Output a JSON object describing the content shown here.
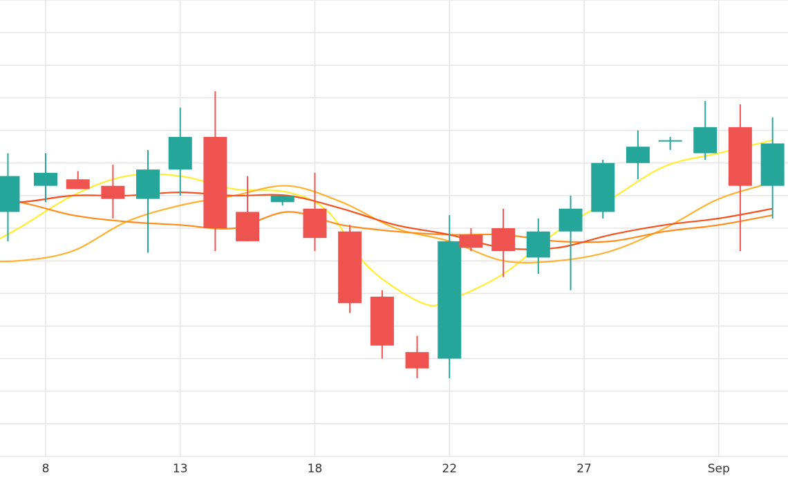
{
  "chart_data": {
    "type": "candlestick",
    "x_ticks": [
      "8",
      "13",
      "18",
      "22",
      "27",
      "Sep"
    ],
    "ylim": [
      0,
      14
    ],
    "grid": true,
    "legend": "none",
    "colors": {
      "up": "#26a69a",
      "down": "#ef5350",
      "grid": "#e6e6e6",
      "ma_fast": "#ffee33",
      "ma_medium": "#ffb02e",
      "ma_slow": "#ff8c1a",
      "ma_longest": "#f4511e"
    },
    "candles": [
      {
        "x": 6.6,
        "open": 7.5,
        "high": 9.3,
        "low": 6.6,
        "close": 8.6
      },
      {
        "x": 8.0,
        "open": 8.3,
        "high": 9.3,
        "low": 7.8,
        "close": 8.7
      },
      {
        "x": 9.2,
        "open": 8.5,
        "high": 8.75,
        "low": 8.2,
        "close": 8.2
      },
      {
        "x": 10.5,
        "open": 8.3,
        "high": 8.95,
        "low": 7.3,
        "close": 7.9
      },
      {
        "x": 11.8,
        "open": 7.9,
        "high": 9.4,
        "low": 6.25,
        "close": 8.8
      },
      {
        "x": 13.0,
        "open": 8.8,
        "high": 10.7,
        "low": 8.0,
        "close": 9.8
      },
      {
        "x": 14.3,
        "open": 9.8,
        "high": 11.2,
        "low": 6.3,
        "close": 7.0
      },
      {
        "x": 15.5,
        "open": 7.5,
        "high": 8.6,
        "low": 6.6,
        "close": 6.6
      },
      {
        "x": 16.8,
        "open": 7.8,
        "high": 8.0,
        "low": 7.7,
        "close": 8.0
      },
      {
        "x": 18.0,
        "open": 7.6,
        "high": 8.7,
        "low": 6.3,
        "close": 6.7
      },
      {
        "x": 19.3,
        "open": 6.9,
        "high": 7.1,
        "low": 4.4,
        "close": 4.7
      },
      {
        "x": 20.5,
        "open": 4.9,
        "high": 5.1,
        "low": 3.0,
        "close": 3.4
      },
      {
        "x": 21.8,
        "open": 3.2,
        "high": 3.7,
        "low": 2.4,
        "close": 2.7
      },
      {
        "x": 23.0,
        "open": 3.0,
        "high": 7.4,
        "low": 2.4,
        "close": 6.6
      },
      {
        "x": 23.8,
        "open": 6.8,
        "high": 7.0,
        "low": 6.3,
        "close": 6.4
      },
      {
        "x": 25.0,
        "open": 7.0,
        "high": 7.6,
        "low": 5.5,
        "close": 6.3
      },
      {
        "x": 26.3,
        "open": 6.1,
        "high": 7.3,
        "low": 5.6,
        "close": 6.9
      },
      {
        "x": 27.5,
        "open": 6.9,
        "high": 8.0,
        "low": 5.1,
        "close": 7.6
      },
      {
        "x": 28.7,
        "open": 7.5,
        "high": 9.1,
        "low": 7.3,
        "close": 9.0
      },
      {
        "x": 30.0,
        "open": 9.0,
        "high": 10.0,
        "low": 8.5,
        "close": 9.5
      },
      {
        "x": 31.2,
        "open": 9.7,
        "high": 9.8,
        "low": 9.4,
        "close": 9.7
      },
      {
        "x": 32.5,
        "open": 9.3,
        "high": 10.9,
        "low": 9.1,
        "close": 10.1
      },
      {
        "x": 33.8,
        "open": 10.1,
        "high": 10.8,
        "low": 6.3,
        "close": 8.3
      },
      {
        "x": 35.0,
        "open": 8.3,
        "high": 10.4,
        "low": 7.3,
        "close": 9.6
      }
    ],
    "series": [
      {
        "color_key": "ma_fast",
        "x": [
          5,
          7,
          9,
          11,
          13,
          15,
          17,
          18.5,
          20,
          22,
          23,
          25,
          27,
          29,
          31,
          33,
          35
        ],
        "y": [
          6.1,
          7.0,
          8.0,
          8.6,
          8.6,
          8.2,
          8.1,
          7.5,
          5.8,
          4.7,
          4.8,
          5.6,
          6.9,
          7.9,
          8.9,
          9.3,
          9.7
        ]
      },
      {
        "color_key": "ma_medium",
        "x": [
          5,
          7,
          9,
          11,
          13,
          15,
          17,
          19,
          21,
          23,
          25,
          27,
          29,
          31,
          33,
          35
        ],
        "y": [
          6.0,
          6.0,
          6.3,
          7.2,
          7.7,
          8.0,
          8.3,
          7.8,
          7.0,
          6.6,
          6.0,
          6.0,
          6.3,
          7.0,
          7.9,
          8.4
        ]
      },
      {
        "color_key": "ma_slow",
        "x": [
          5,
          7,
          9,
          11,
          13,
          15,
          17,
          19,
          21,
          23,
          25,
          27,
          29,
          31,
          33,
          35
        ],
        "y": [
          7.9,
          7.8,
          7.4,
          7.2,
          7.1,
          7.0,
          7.5,
          7.1,
          6.9,
          6.8,
          6.8,
          6.6,
          6.6,
          6.9,
          7.1,
          7.4
        ]
      },
      {
        "color_key": "ma_longest",
        "x": [
          5,
          7,
          9,
          11,
          13,
          15,
          17,
          19,
          21,
          23,
          25,
          27,
          29,
          31,
          33,
          35
        ],
        "y": [
          7.9,
          7.8,
          8.0,
          8.0,
          8.1,
          8.0,
          8.0,
          7.6,
          7.1,
          6.8,
          6.4,
          6.4,
          6.8,
          7.1,
          7.3,
          7.6
        ]
      }
    ]
  }
}
